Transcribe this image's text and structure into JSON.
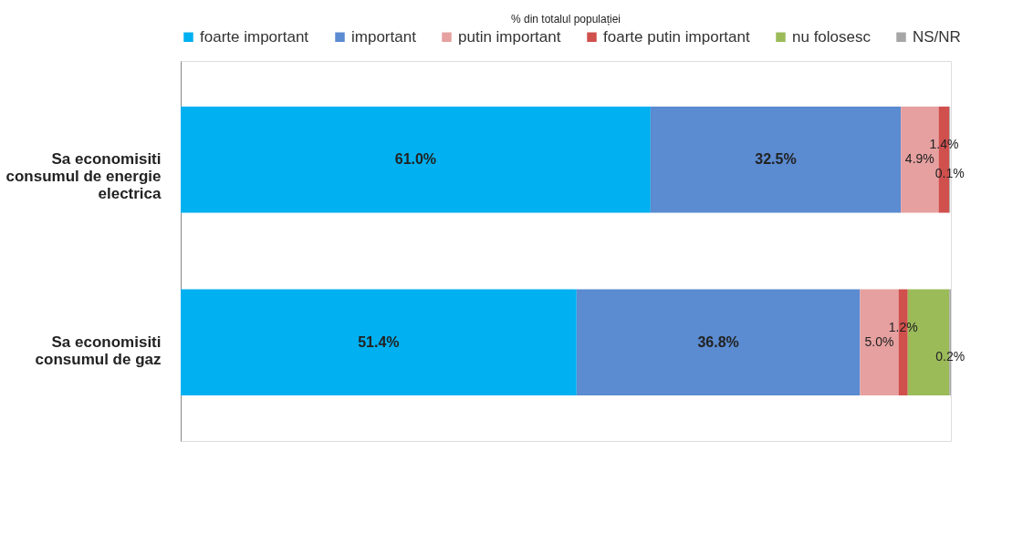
{
  "chart_data": {
    "type": "bar",
    "orientation": "horizontal",
    "stacked": true,
    "title": "% din totalul populației",
    "categories": [
      "Sa economisiti consumul de energie electrica",
      "Sa economisiti consumul de gaz"
    ],
    "xlim": [
      0,
      100
    ],
    "tick_labels": "y",
    "grid": false,
    "legend": "top",
    "series": [
      {
        "name": "foarte important",
        "color": "#00b0f0",
        "values": [
          61.0,
          51.4
        ],
        "value_labels": [
          "61.0%",
          "51.4%"
        ]
      },
      {
        "name": "important",
        "color": "#5b8bd0",
        "values": [
          32.5,
          36.8
        ],
        "value_labels": [
          "32.5%",
          "36.8%"
        ]
      },
      {
        "name": "putin important",
        "color": "#e6a0a0",
        "values": [
          4.9,
          5.0
        ],
        "value_labels": [
          "4.9%",
          "5.0%"
        ]
      },
      {
        "name": "foarte putin important",
        "color": "#d0504d",
        "values": [
          1.4,
          1.2
        ],
        "value_labels": [
          "1.4%",
          "1.2%"
        ]
      },
      {
        "name": "nu folosesc",
        "color": "#9bbb59",
        "values": [
          null,
          5.4
        ],
        "value_labels": [
          null,
          null
        ]
      },
      {
        "name": "NS/NR",
        "color": "#a6a6a6",
        "values": [
          0.1,
          0.2
        ],
        "value_labels": [
          "0.1%",
          "0.2%"
        ]
      }
    ]
  }
}
